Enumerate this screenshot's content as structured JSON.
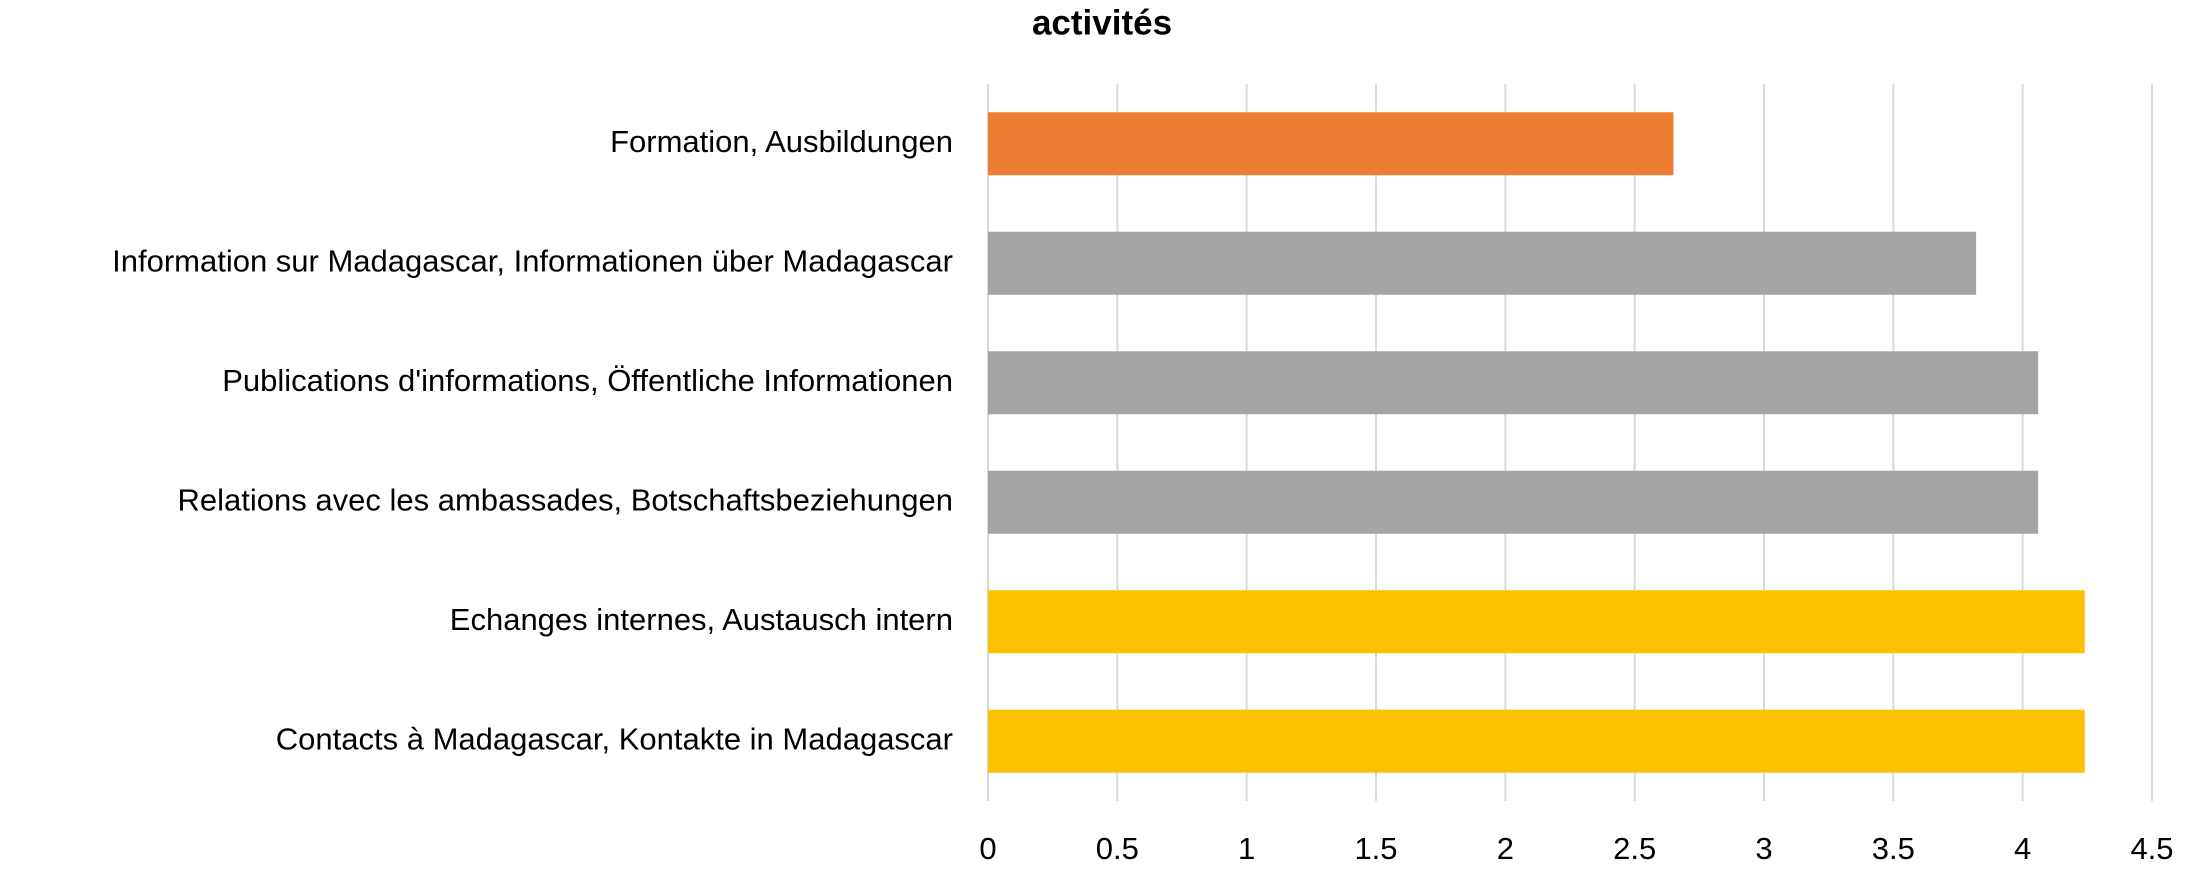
{
  "chart_data": {
    "type": "hbar",
    "title": "activités",
    "categories": [
      "Formation, Ausbildungen",
      "Information sur Madagascar, Informationen über Madagascar",
      "Publications d'informations, Öffentliche Informationen",
      "Relations avec les ambassades, Botschaftsbeziehungen",
      "Echanges internes, Austausch intern",
      "Contacts à Madagascar, Kontakte in Madagascar"
    ],
    "values": [
      2.65,
      3.82,
      4.06,
      4.06,
      4.24,
      4.24
    ],
    "colors": [
      "#ed7d31",
      "#a5a5a5",
      "#a5a5a5",
      "#a5a5a5",
      "#ffc000",
      "#ffc000"
    ],
    "xlim": [
      0,
      4.5
    ],
    "xticks": [
      0,
      0.5,
      1,
      1.5,
      2,
      2.5,
      3,
      3.5,
      4,
      4.5
    ],
    "grid": true
  }
}
